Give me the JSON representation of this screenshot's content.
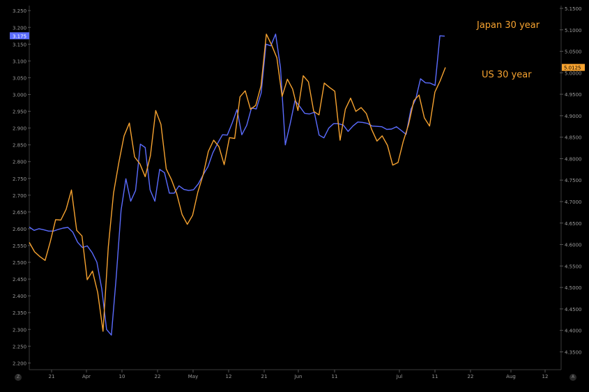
{
  "chart_data": {
    "type": "line",
    "background": "#000000",
    "grid": false,
    "x_ticks": [
      "21",
      "Apr",
      "10",
      "22",
      "May",
      "12",
      "21",
      "Jun",
      "11",
      "Jul",
      "11",
      "22",
      "Aug",
      "12"
    ],
    "y_left": {
      "min": 2.18,
      "max": 3.265,
      "ticks": [
        "3.250",
        "3.200",
        "3.150",
        "3.100",
        "3.050",
        "3.000",
        "2.950",
        "2.900",
        "2.850",
        "2.800",
        "2.750",
        "2.700",
        "2.650",
        "2.600",
        "2.550",
        "2.500",
        "2.450",
        "2.400",
        "2.350",
        "2.300",
        "2.250",
        "2.200"
      ],
      "highlight": {
        "label": "3.175",
        "color": "#5b6cff"
      }
    },
    "y_right": {
      "min": 4.3085,
      "max": 5.1565,
      "ticks": [
        "5.1500",
        "5.1000",
        "5.0500",
        "5.0000",
        "4.9500",
        "4.9000",
        "4.8500",
        "4.8000",
        "4.7500",
        "4.7000",
        "4.6500",
        "4.6000",
        "4.5500",
        "4.5000",
        "4.4500",
        "4.4000",
        "4.3500"
      ],
      "highlight": {
        "label": "5.0125",
        "color": "#f7a330"
      }
    },
    "series": [
      {
        "name": "Japan 30 year",
        "axis": "left",
        "color": "#5b6cff",
        "values": [
          2.605,
          2.595,
          2.6,
          2.597,
          2.593,
          2.593,
          2.598,
          2.602,
          2.604,
          2.59,
          2.56,
          2.544,
          2.549,
          2.529,
          2.5,
          2.421,
          2.3,
          2.283,
          2.455,
          2.655,
          2.749,
          2.682,
          2.714,
          2.852,
          2.842,
          2.716,
          2.682,
          2.777,
          2.767,
          2.706,
          2.706,
          2.728,
          2.717,
          2.714,
          2.716,
          2.734,
          2.761,
          2.785,
          2.826,
          2.855,
          2.88,
          2.879,
          2.915,
          2.955,
          2.88,
          2.908,
          2.96,
          2.957,
          3.005,
          3.15,
          3.145,
          3.18,
          3.08,
          2.85,
          2.912,
          2.982,
          2.964,
          2.944,
          2.942,
          2.947,
          2.879,
          2.871,
          2.9,
          2.913,
          2.913,
          2.909,
          2.89,
          2.906,
          2.918,
          2.917,
          2.914,
          2.906,
          2.905,
          2.904,
          2.896,
          2.897,
          2.904,
          2.893,
          2.881,
          2.956,
          2.986,
          3.047,
          3.035,
          3.034,
          3.027,
          3.175,
          3.174
        ]
      },
      {
        "name": "US 30 year",
        "axis": "right",
        "color": "#f7a330",
        "values": [
          4.605,
          4.583,
          4.572,
          4.563,
          4.607,
          4.658,
          4.657,
          4.682,
          4.727,
          4.633,
          4.62,
          4.518,
          4.538,
          4.488,
          4.398,
          4.595,
          4.72,
          4.791,
          4.853,
          4.883,
          4.804,
          4.788,
          4.758,
          4.807,
          4.912,
          4.88,
          4.776,
          4.751,
          4.718,
          4.67,
          4.647,
          4.668,
          4.722,
          4.762,
          4.817,
          4.843,
          4.828,
          4.786,
          4.849,
          4.847,
          4.944,
          4.958,
          4.915,
          4.924,
          4.97,
          5.09,
          5.065,
          5.035,
          4.945,
          4.985,
          4.962,
          4.912,
          4.993,
          4.979,
          4.91,
          4.902,
          4.976,
          4.966,
          4.957,
          4.843,
          4.915,
          4.941,
          4.91,
          4.919,
          4.905,
          4.868,
          4.841,
          4.853,
          4.831,
          4.785,
          4.791,
          4.84,
          4.879,
          4.935,
          4.948,
          4.895,
          4.876,
          4.955,
          4.981,
          5.0125
        ]
      }
    ],
    "annotations": [
      {
        "text": "Japan 30 year",
        "color": "#f7a330"
      },
      {
        "text": "US 30 year",
        "color": "#f7a330"
      }
    ]
  },
  "footer": {
    "left_button": "Z",
    "right_button": "A"
  }
}
